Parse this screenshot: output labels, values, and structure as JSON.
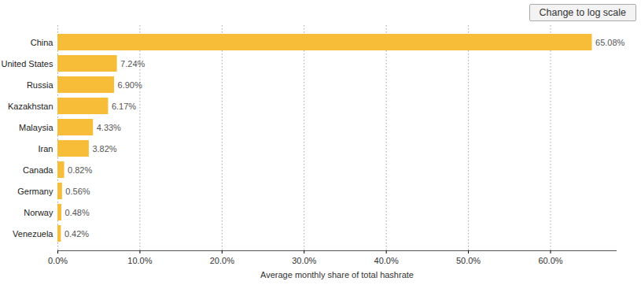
{
  "chart_data": {
    "type": "bar",
    "orientation": "horizontal",
    "categories": [
      "China",
      "United States",
      "Russia",
      "Kazakhstan",
      "Malaysia",
      "Iran",
      "Canada",
      "Germany",
      "Norway",
      "Venezuela"
    ],
    "values": [
      65.08,
      7.24,
      6.9,
      6.17,
      4.33,
      3.82,
      0.82,
      0.56,
      0.48,
      0.42
    ],
    "value_labels": [
      "65.08%",
      "7.24%",
      "6.90%",
      "6.17%",
      "4.33%",
      "3.82%",
      "0.82%",
      "0.56%",
      "0.48%",
      "0.42%"
    ],
    "data_labels": true,
    "color": "#f7bc38",
    "x_label": "Average monthly share of total hashrate",
    "xlim": [
      0,
      68
    ],
    "xticks": [
      {
        "value": 0,
        "label": "0.0%"
      },
      {
        "value": 10,
        "label": "10.0%"
      },
      {
        "value": 20,
        "label": "20.0%"
      },
      {
        "value": 30,
        "label": "30.0%"
      },
      {
        "value": 40,
        "label": "40.0%"
      },
      {
        "value": 50,
        "label": "50.0%"
      },
      {
        "value": 60,
        "label": "60.0%"
      }
    ],
    "grid": true,
    "annotations": [
      "Change to log scale"
    ]
  }
}
